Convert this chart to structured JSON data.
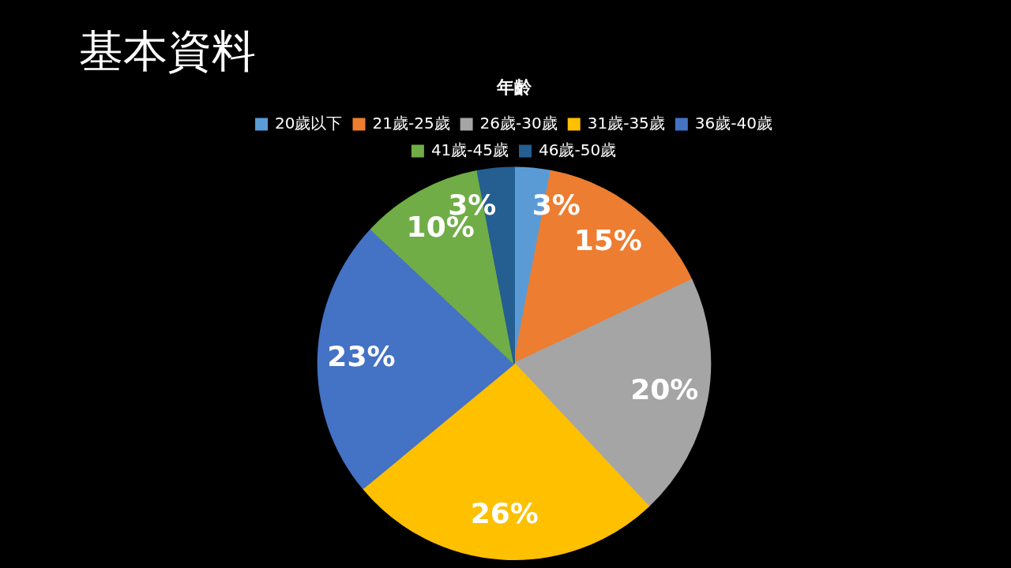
{
  "chart_data": {
    "type": "pie",
    "title": "基本資料",
    "subtitle": "年齡",
    "categories": [
      "20歲以下",
      "21歲-25歲",
      "26歲-30歲",
      "31歲-35歲",
      "36歲-40歲",
      "41歲-45歲",
      "46歲-50歲"
    ],
    "values": [
      3,
      15,
      20,
      26,
      23,
      10,
      3
    ],
    "value_labels": [
      "3%",
      "15%",
      "20%",
      "26%",
      "23%",
      "10%",
      "3%"
    ],
    "colors": [
      "#5b9bd5",
      "#ed7d31",
      "#a5a5a5",
      "#ffc000",
      "#4472c4",
      "#70ad47",
      "#255e91"
    ],
    "legend": "top"
  }
}
